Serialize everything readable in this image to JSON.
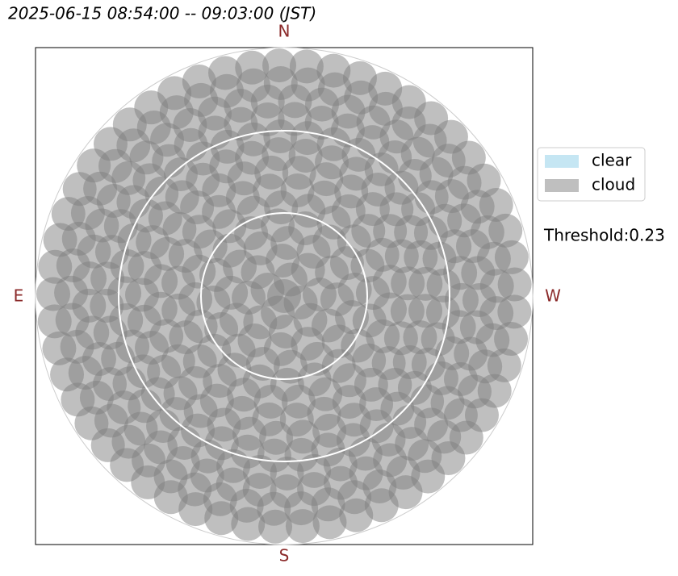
{
  "title": "2025-06-15 08:54:00 -- 09:03:00 (JST)",
  "directions": {
    "north": "N",
    "east": "E",
    "south": "S",
    "west": "W"
  },
  "legend": [
    {
      "label": "clear",
      "color": "#c5e6f3"
    },
    {
      "label": "cloud",
      "color": "#bfbfbf"
    }
  ],
  "threshold": "Threshold:0.23"
}
